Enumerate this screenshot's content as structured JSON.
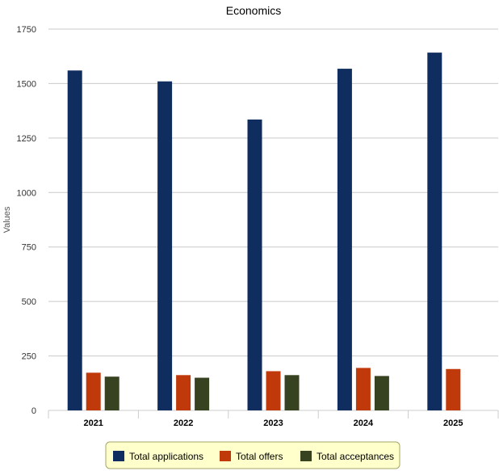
{
  "chart_data": {
    "type": "bar",
    "title": "Economics",
    "xlabel": "",
    "ylabel": "Values",
    "ylim": [
      0,
      1750
    ],
    "y_ticks": [
      0,
      250,
      500,
      750,
      1000,
      1250,
      1500,
      1750
    ],
    "categories": [
      "2021",
      "2022",
      "2023",
      "2024",
      "2025"
    ],
    "series": [
      {
        "name": "Total applications",
        "color": "#0f2d5e",
        "values": [
          1560,
          1510,
          1335,
          1568,
          1642
        ]
      },
      {
        "name": "Total offers",
        "color": "#c0390b",
        "values": [
          173,
          162,
          180,
          195,
          190
        ]
      },
      {
        "name": "Total acceptances",
        "color": "#374220",
        "values": [
          155,
          150,
          162,
          158,
          null
        ]
      }
    ],
    "grid": true,
    "legend_position": "bottom"
  }
}
